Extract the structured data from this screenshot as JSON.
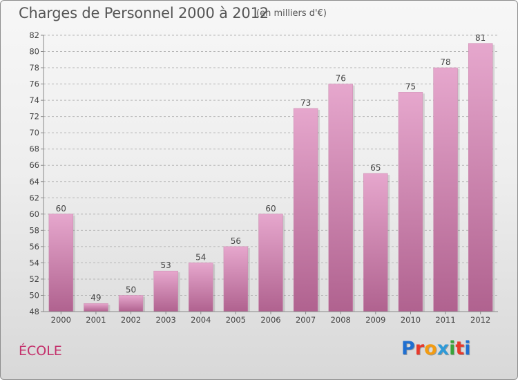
{
  "header": {
    "title": "Charges de Personnel 2000 à 2012",
    "subtitle": "(en milliers d'€)"
  },
  "footer": {
    "location": "ÉCOLE",
    "logo_text": "Proxiti",
    "logo_colors": [
      "#1f6fd1",
      "#e8392b",
      "#f39c12",
      "#2e9ad8",
      "#3aa33a",
      "#e8392b",
      "#1f6fd1"
    ]
  },
  "colors": {
    "bar_top": "#e6a7cd",
    "bar_bottom": "#b0628f",
    "grid": "#b5b5b5",
    "axis": "#888888"
  },
  "chart_data": {
    "type": "bar",
    "title": "Charges de Personnel 2000 à 2012",
    "subtitle": "(en milliers d'€)",
    "categories": [
      "2000",
      "2001",
      "2002",
      "2003",
      "2004",
      "2005",
      "2006",
      "2007",
      "2008",
      "2009",
      "2010",
      "2011",
      "2012"
    ],
    "values": [
      60,
      49,
      50,
      53,
      54,
      56,
      60,
      73,
      76,
      65,
      75,
      78,
      81
    ],
    "ylim": [
      48,
      82
    ],
    "yticks": [
      48,
      50,
      52,
      54,
      56,
      58,
      60,
      62,
      64,
      66,
      68,
      70,
      72,
      74,
      76,
      78,
      80,
      82
    ],
    "grid": true,
    "data_labels": true
  }
}
